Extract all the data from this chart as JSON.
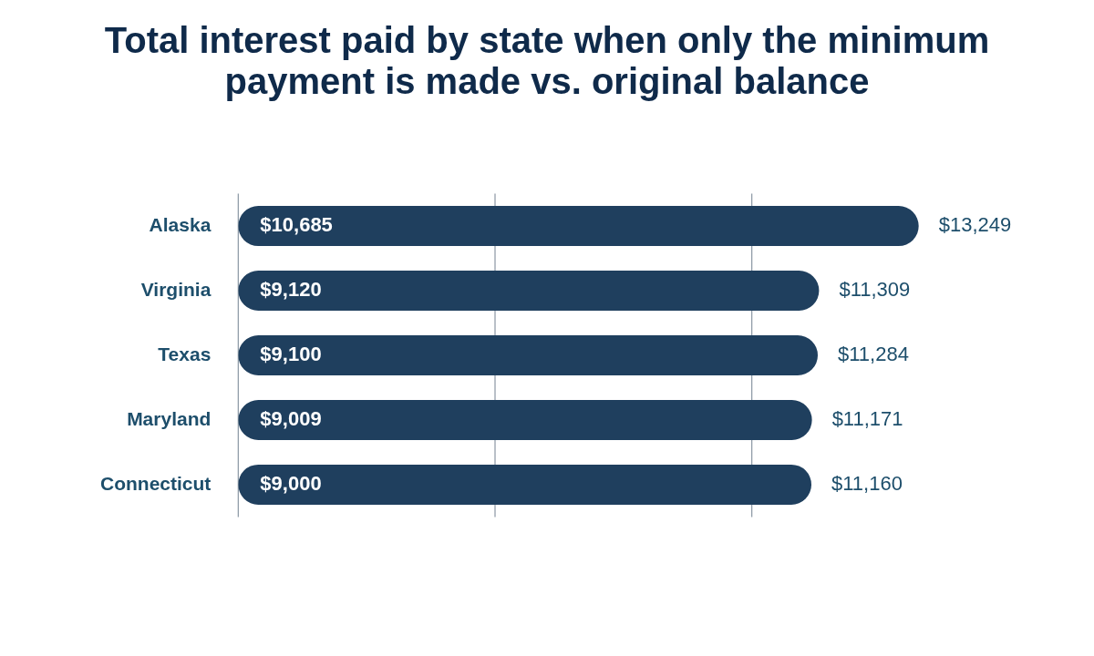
{
  "chart_data": {
    "type": "bar",
    "orientation": "horizontal",
    "title": "Total interest paid by state when only the minimum payment is made vs. original balance",
    "categories": [
      "Alaska",
      "Virginia",
      "Texas",
      "Maryland",
      "Connecticut"
    ],
    "values": [
      13249,
      11309,
      11284,
      11171,
      11160
    ],
    "value_labels": [
      "$13,249",
      "$11,309",
      "$11,284",
      "$11,171",
      "$11,160"
    ],
    "color": "#1f3f5e",
    "ref_lines": [
      {
        "axis": "x",
        "value": 0,
        "color": "#8a96a3"
      },
      {
        "axis": "x",
        "value": 5000,
        "color": "#8a96a3"
      },
      {
        "axis": "x",
        "value": 10000,
        "color": "#8a96a3"
      }
    ],
    "tick_labels": "y",
    "legend": false,
    "annotations": [
      "$10,685",
      "$9,120",
      "$9,100",
      "$9,009",
      "$9,000"
    ]
  }
}
